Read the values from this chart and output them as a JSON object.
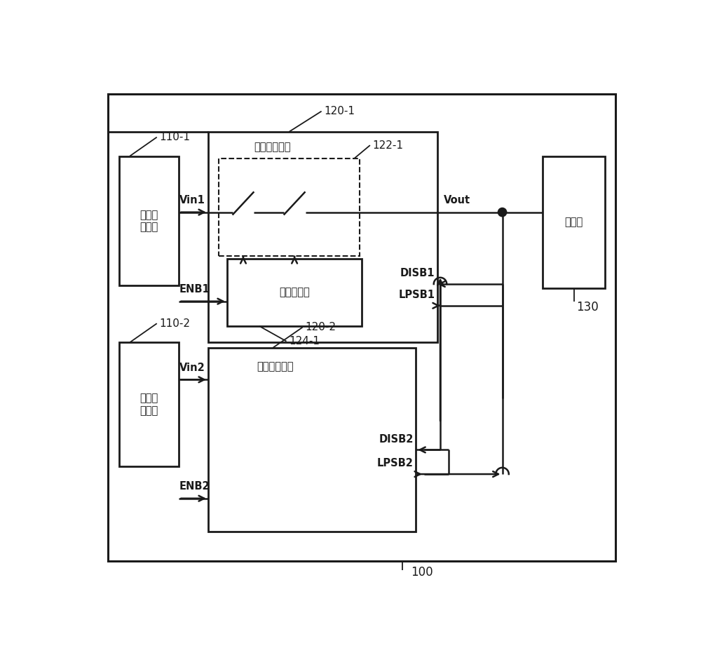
{
  "bg_color": "#ffffff",
  "line_color": "#1a1a1a",
  "figsize": [
    10.0,
    9.24
  ],
  "dpi": 100,
  "box1_text": "第一连\n接端口",
  "box2_text": "第二连\n接端口",
  "box3_text": "电池组",
  "ctrl1_text": "第一控制电路",
  "ctrl2_text": "第二控制电路",
  "ctrlr1_text": "第一控制器",
  "lbl_100": "100",
  "lbl_110_1": "110-1",
  "lbl_110_2": "110-2",
  "lbl_120_1": "120-1",
  "lbl_120_2": "120-2",
  "lbl_122_1": "122-1",
  "lbl_124_1": "124-1",
  "lbl_130": "130",
  "Vin1": "Vin1",
  "Vin2": "Vin2",
  "Vout": "Vout",
  "ENB1": "ENB1",
  "ENB2": "ENB2",
  "DISB1": "DISB1",
  "DISB2": "DISB2",
  "LPSB1": "LPSB1",
  "LPSB2": "LPSB2"
}
